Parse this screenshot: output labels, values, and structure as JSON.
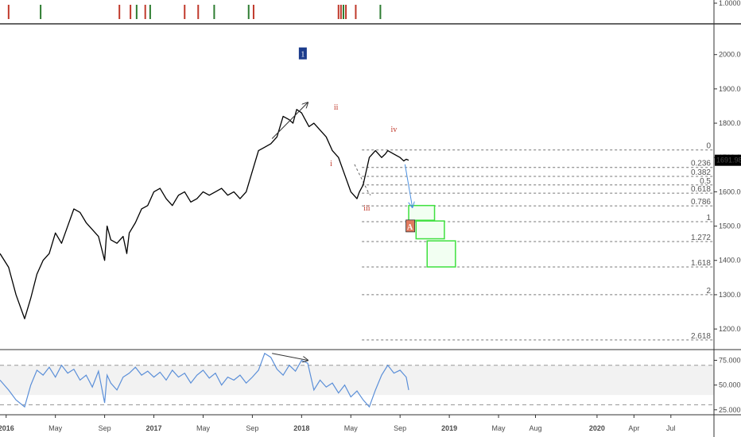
{
  "chart_data": {
    "type": "line",
    "colors": {
      "price_line": "#000000",
      "rsi_line": "#5b8fd8",
      "fib_line": "#777777",
      "wave_label": "#c0392b",
      "wave_label_box": "#1c3c8c",
      "target_box_border": "#3ee03e",
      "target_box_fill": "#f2fff2",
      "marker_red": "#c0392b",
      "marker_green": "#2e7d32",
      "arrow_blue": "#4a90e2",
      "axis_line": "#333333",
      "rsi_band": "#f2f2f2",
      "label_A_fill": "#e07a5f",
      "price_tag_bg": "#000000",
      "price_tag_text": "#ffffff"
    },
    "x_axis": {
      "tick_labels": [
        "2016",
        "May",
        "Sep",
        "2017",
        "May",
        "Sep",
        "2018",
        "May",
        "Sep",
        "2019",
        "May",
        "Aug",
        "2020",
        "Apr",
        "Jul"
      ],
      "tick_months": [
        0,
        4,
        8,
        12,
        16,
        20,
        24,
        28,
        32,
        36,
        40,
        43,
        48,
        51,
        54
      ],
      "range_months": [
        -0.5,
        57.5
      ]
    },
    "price_panel": {
      "y_range": [
        1140,
        2085
      ],
      "y_ticks": [
        "2000.00",
        "1900.00",
        "1800.00",
        "1700.00",
        "1600.00",
        "1500.00",
        "1400.00",
        "1300.00",
        "1200.00"
      ],
      "y_tick_values": [
        2000,
        1900,
        1800,
        1700,
        1600,
        1500,
        1400,
        1300,
        1200
      ],
      "last_price": "1691.98",
      "last_price_value": 1691.98,
      "series": [
        {
          "x": [
            -0.5,
            0.2,
            0.8,
            1.5,
            2.0,
            2.5,
            3.0,
            3.5,
            4.0,
            4.5,
            5.0,
            5.5,
            6.0,
            6.5,
            7.0,
            7.5,
            8.0,
            8.2,
            8.5,
            9.0,
            9.5,
            9.8,
            10.0,
            10.5,
            11.0,
            11.5,
            12.0,
            12.5,
            13.0,
            13.5,
            14.0,
            14.5,
            15.0,
            15.5,
            16.0,
            16.5,
            17.0,
            17.5,
            18.0,
            18.5,
            19.0,
            19.5,
            20.0,
            20.5,
            21.0,
            21.5,
            22.0,
            22.5,
            23.0,
            23.3,
            23.6,
            24.0,
            24.3,
            24.6,
            25.0,
            25.5,
            26.0,
            26.5,
            27.0,
            27.5,
            28.0,
            28.5,
            28.7,
            29.0,
            29.5,
            30.0,
            30.5,
            30.8,
            31.0,
            31.5,
            32.0,
            32.3,
            32.5,
            32.7
          ],
          "y": [
            1420,
            1380,
            1300,
            1230,
            1290,
            1360,
            1400,
            1420,
            1480,
            1450,
            1500,
            1550,
            1540,
            1510,
            1490,
            1470,
            1400,
            1500,
            1460,
            1450,
            1470,
            1420,
            1480,
            1510,
            1550,
            1560,
            1600,
            1610,
            1580,
            1560,
            1590,
            1600,
            1570,
            1580,
            1600,
            1590,
            1600,
            1610,
            1590,
            1600,
            1580,
            1600,
            1660,
            1720,
            1730,
            1740,
            1760,
            1820,
            1810,
            1800,
            1840,
            1830,
            1810,
            1790,
            1800,
            1780,
            1760,
            1720,
            1700,
            1650,
            1600,
            1580,
            1600,
            1620,
            1700,
            1720,
            1700,
            1710,
            1720,
            1710,
            1700,
            1690,
            1695,
            1691.98
          ]
        }
      ],
      "fib_levels": [
        {
          "label": "0",
          "value": 1722
        },
        {
          "label": "0.236",
          "value": 1671
        },
        {
          "label": "0.382",
          "value": 1645
        },
        {
          "label": "0.5",
          "value": 1620
        },
        {
          "label": "0.618",
          "value": 1596
        },
        {
          "label": "0.786",
          "value": 1559
        },
        {
          "label": "1",
          "value": 1513
        },
        {
          "label": "1.272",
          "value": 1455
        },
        {
          "label": "1.618",
          "value": 1381
        },
        {
          "label": "2",
          "value": 1300
        },
        {
          "label": "2.618",
          "value": 1168
        }
      ],
      "fib_start_month": 28.9,
      "wave_labels": [
        {
          "text": "1",
          "x": 24.1,
          "y": 2000,
          "boxed": true
        },
        {
          "text": "ii",
          "x": 26.8,
          "y": 1840,
          "boxed": false
        },
        {
          "text": "i",
          "x": 26.4,
          "y": 1675,
          "boxed": false
        },
        {
          "text": "iii",
          "x": 29.3,
          "y": 1545,
          "boxed": false
        },
        {
          "text": "iv",
          "x": 31.5,
          "y": 1775,
          "boxed": false
        }
      ],
      "corrective_label": {
        "text": "A",
        "x": 32.8,
        "y": 1497
      },
      "target_boxes": [
        {
          "x0": 32.7,
          "x1": 34.8,
          "y0": 1517,
          "y1": 1560
        },
        {
          "x0": 33.3,
          "x1": 35.6,
          "y0": 1463,
          "y1": 1515
        },
        {
          "x0": 34.2,
          "x1": 36.5,
          "y0": 1381,
          "y1": 1457
        }
      ],
      "trend_arrows": [
        {
          "x0": 21.6,
          "y0": 1755,
          "x1": 24.5,
          "y1": 1860
        },
        {
          "x0": 32.4,
          "y0": 1680,
          "x1": 33.0,
          "y1": 1555
        }
      ],
      "dashed_path": [
        {
          "x": 28.3,
          "y": 1680
        },
        {
          "x": 29.4,
          "y": 1600
        },
        {
          "x": 29.6,
          "y": 1590
        }
      ]
    },
    "indicator_panel": {
      "y_range": [
        20,
        85
      ],
      "y_ticks": [
        "75.000",
        "50.000",
        "25.000"
      ],
      "y_tick_values": [
        75,
        50,
        25
      ],
      "band": [
        40,
        70
      ],
      "series": [
        {
          "x": [
            -0.5,
            0.2,
            0.8,
            1.5,
            2.0,
            2.5,
            3.0,
            3.5,
            4.0,
            4.5,
            5.0,
            5.5,
            6.0,
            6.5,
            7.0,
            7.5,
            8.0,
            8.2,
            8.5,
            9.0,
            9.5,
            10.0,
            10.5,
            11.0,
            11.5,
            12.0,
            12.5,
            13.0,
            13.5,
            14.0,
            14.5,
            15.0,
            15.5,
            16.0,
            16.5,
            17.0,
            17.5,
            18.0,
            18.5,
            19.0,
            19.5,
            20.0,
            20.5,
            21.0,
            21.5,
            22.0,
            22.5,
            23.0,
            23.5,
            24.0,
            24.5,
            25.0,
            25.5,
            26.0,
            26.5,
            27.0,
            27.5,
            28.0,
            28.5,
            29.0,
            29.5,
            30.0,
            30.5,
            31.0,
            31.5,
            32.0,
            32.5,
            32.7
          ],
          "y": [
            55,
            45,
            35,
            28,
            50,
            65,
            60,
            68,
            58,
            70,
            62,
            66,
            55,
            60,
            48,
            64,
            32,
            60,
            52,
            45,
            58,
            62,
            68,
            60,
            64,
            58,
            63,
            55,
            65,
            58,
            62,
            52,
            60,
            65,
            57,
            62,
            50,
            58,
            55,
            60,
            52,
            58,
            65,
            82,
            78,
            66,
            60,
            70,
            64,
            75,
            72,
            45,
            55,
            48,
            52,
            42,
            50,
            38,
            44,
            35,
            28,
            45,
            60,
            70,
            62,
            65,
            58,
            45
          ]
        }
      ],
      "trend_arrow": {
        "x0": 21.6,
        "y0": 82,
        "x1": 24.5,
        "y1": 75
      }
    },
    "marker_panel": {
      "y_tick": "1.0000",
      "markers": [
        {
          "x": 0.2,
          "color": "red"
        },
        {
          "x": 2.8,
          "color": "green"
        },
        {
          "x": 9.2,
          "color": "red"
        },
        {
          "x": 10.1,
          "color": "red"
        },
        {
          "x": 10.6,
          "color": "green"
        },
        {
          "x": 11.3,
          "color": "red"
        },
        {
          "x": 11.7,
          "color": "green"
        },
        {
          "x": 14.5,
          "color": "red"
        },
        {
          "x": 15.6,
          "color": "red"
        },
        {
          "x": 16.9,
          "color": "green"
        },
        {
          "x": 19.7,
          "color": "green"
        },
        {
          "x": 20.1,
          "color": "red"
        },
        {
          "x": 27.0,
          "color": "red"
        },
        {
          "x": 27.2,
          "color": "red"
        },
        {
          "x": 27.4,
          "color": "green"
        },
        {
          "x": 27.6,
          "color": "red"
        },
        {
          "x": 28.4,
          "color": "red"
        },
        {
          "x": 30.4,
          "color": "green"
        }
      ]
    }
  }
}
